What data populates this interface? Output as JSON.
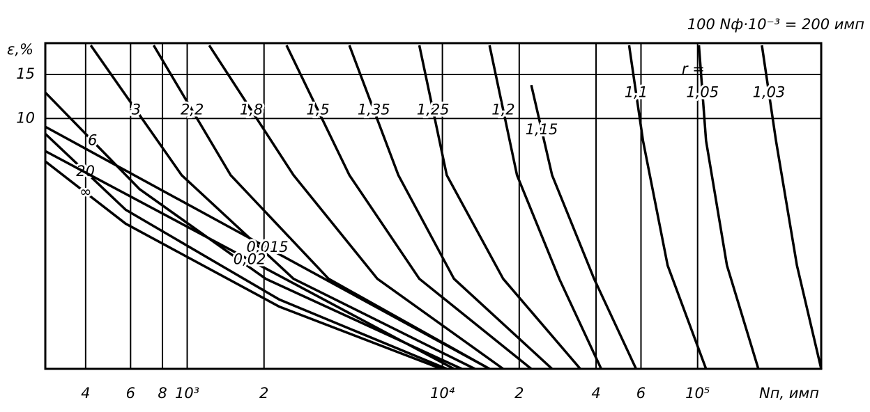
{
  "chart_data": {
    "type": "line",
    "title": "100  Nф·10⁻³ = 200 имп",
    "y_label": "ε,%",
    "x_label": "Nп, имп",
    "annotation": "r =",
    "log_x": true,
    "log_y": true,
    "grid": true,
    "xlim": [
      278,
      305000
    ],
    "ylim": [
      1,
      20
    ],
    "xticks": [
      {
        "value": 400,
        "label": "4"
      },
      {
        "value": 600,
        "label": "6"
      },
      {
        "value": 800,
        "label": "8"
      },
      {
        "value": 1000,
        "label": "10³"
      },
      {
        "value": 2000,
        "label": "2"
      },
      {
        "value": 10000,
        "label": "10⁴"
      },
      {
        "value": 20000,
        "label": "2"
      },
      {
        "value": 40000,
        "label": "4"
      },
      {
        "value": 60000,
        "label": "6"
      },
      {
        "value": 100000,
        "label": "10⁵"
      }
    ],
    "yticks": [
      15,
      10
    ],
    "series": [
      {
        "name": "1,03",
        "color": "#000",
        "x": [
          178600,
          202800,
          245000,
          305000
        ],
        "values": [
          19.6,
          8.16,
          2.59,
          1.0
        ]
      },
      {
        "name": "1,05",
        "color": "#000",
        "x": [
          101200,
          107900,
          130300,
          173000
        ],
        "values": [
          19.6,
          8.16,
          2.59,
          1.0
        ]
      },
      {
        "name": "1,1",
        "color": "#000",
        "x": [
          53900,
          61100,
          76300,
          107900
        ],
        "values": [
          19.6,
          8.16,
          2.59,
          1.0
        ]
      },
      {
        "name": "1,15",
        "color": "#000",
        "x": [
          22300,
          26900,
          39300,
          57400
        ],
        "values": [
          13.6,
          5.94,
          2.29,
          1.0
        ]
      },
      {
        "name": "1,2",
        "color": "#000",
        "x": [
          15300,
          19600,
          28700,
          41900
        ],
        "values": [
          19.6,
          5.94,
          2.29,
          1.0
        ]
      },
      {
        "name": "1,25",
        "color": "#000",
        "x": [
          8120,
          10400,
          17300,
          34700
        ],
        "values": [
          19.6,
          5.94,
          2.29,
          1.0
        ]
      },
      {
        "name": "1,35",
        "color": "#000",
        "x": [
          4320,
          6720,
          11100,
          26900
        ],
        "values": [
          19.6,
          5.94,
          2.29,
          1.0
        ]
      },
      {
        "name": "1,5",
        "color": "#000",
        "x": [
          2450,
          4320,
          8120,
          22300
        ],
        "values": [
          19.6,
          5.94,
          2.29,
          1.0
        ]
      },
      {
        "name": "1,8",
        "color": "#000",
        "x": [
          1220,
          2610,
          5560,
          17300
        ],
        "values": [
          19.6,
          5.94,
          2.29,
          1.0
        ]
      },
      {
        "name": "2,2",
        "color": "#000",
        "x": [
          739,
          1480,
          3580,
          15300
        ],
        "values": [
          19.6,
          5.94,
          2.29,
          1.0
        ]
      },
      {
        "name": "3",
        "color": "#000",
        "x": [
          419,
          951,
          2610,
          13400
        ],
        "values": [
          19.6,
          5.94,
          2.29,
          1.0
        ]
      },
      {
        "name": "6",
        "color": "#000",
        "x": [
          278,
          651,
          2030,
          11900
        ],
        "values": [
          12.7,
          5.22,
          2.29,
          1.0
        ]
      },
      {
        "name": "20",
        "color": "#000",
        "x": [
          278,
          574,
          2300,
          10400
        ],
        "values": [
          8.69,
          4.32,
          1.89,
          1.0
        ]
      },
      {
        "name": "∞",
        "color": "#000",
        "x": [
          278,
          574,
          2300,
          9920
        ],
        "values": [
          6.74,
          3.8,
          1.77,
          1.0
        ]
      },
      {
        "name": "0,015",
        "color": "#000",
        "x": [
          278,
          15300
        ],
        "values": [
          9.27,
          1.0
        ]
      },
      {
        "name": "0,02",
        "color": "#000",
        "x": [
          278,
          11100
        ],
        "values": [
          7.41,
          1.0
        ]
      }
    ]
  }
}
